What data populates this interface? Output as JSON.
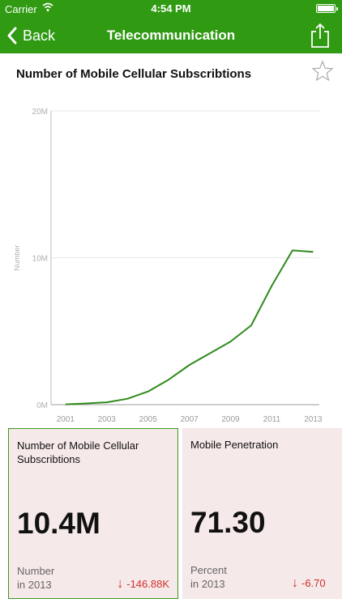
{
  "status_bar": {
    "carrier": "Carrier",
    "time": "4:54 PM"
  },
  "nav": {
    "back_label": "Back",
    "title": "Telecommunication",
    "color": "#2f9a12"
  },
  "chart_title": "Number of Mobile Cellular Subscribtions",
  "chart_data": {
    "type": "line",
    "ylabel": "Number",
    "ylim": [
      0,
      20000000
    ],
    "y_ticks": [
      "0M",
      "10M",
      "20M"
    ],
    "x_ticks": [
      "2001",
      "2003",
      "2005",
      "2007",
      "2009",
      "2011",
      "2013"
    ],
    "line_color": "#2f8a1a",
    "grid": true,
    "series": [
      {
        "x": [
          2001,
          2002,
          2003,
          2004,
          2005,
          2006,
          2007,
          2008,
          2009,
          2010,
          2011,
          2012,
          2013
        ],
        "values": [
          20000,
          80000,
          160000,
          400000,
          900000,
          1700000,
          2700000,
          3500000,
          4300000,
          5400000,
          8100000,
          10500000,
          10400000
        ]
      }
    ]
  },
  "cards": [
    {
      "title": "Number of Mobile Cellular Subscribtions",
      "value": "10.4M",
      "unit": "Number",
      "year": "in 2013",
      "delta": "-146.88K",
      "arrow": "↓"
    },
    {
      "title": "Mobile Penetration",
      "value": "71.30",
      "unit": "Percent",
      "year": "in 2013",
      "delta": "-6.70",
      "arrow": "↓"
    }
  ]
}
